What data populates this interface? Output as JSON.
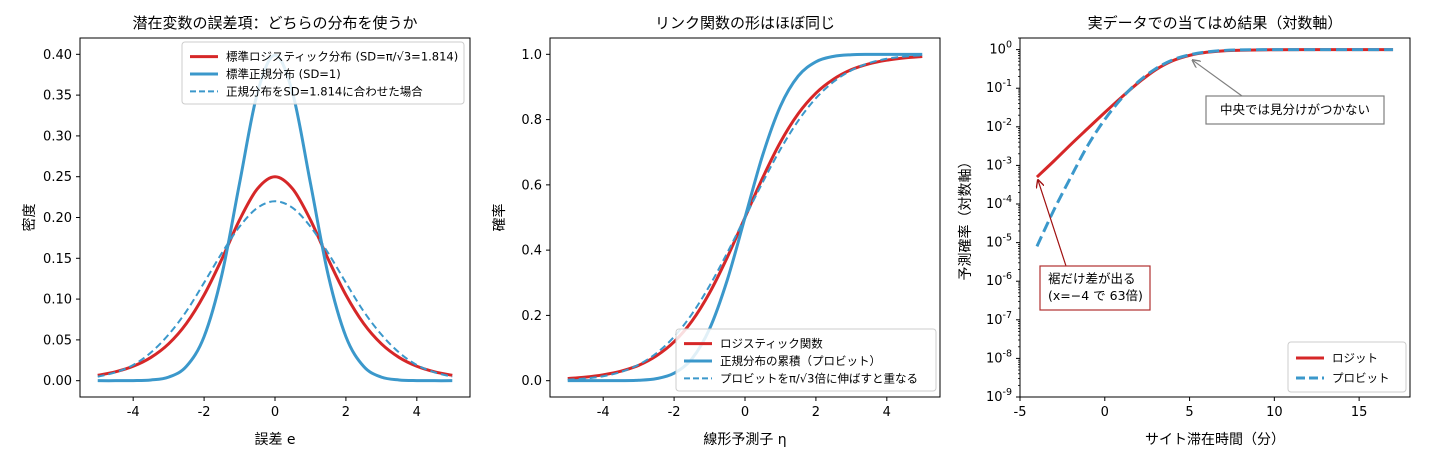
{
  "chart_data": [
    {
      "type": "line",
      "title": "潜在変数の誤差項：どちらの分布を使うか",
      "xlabel": "誤差 e",
      "ylabel": "密度",
      "xlim": [
        -5.5,
        5.5
      ],
      "ylim": [
        -0.02,
        0.42
      ],
      "x_ticks": [
        -4,
        -2,
        0,
        2,
        4
      ],
      "x_tick_labels": [
        "-4",
        "-2",
        "0",
        "2",
        "4"
      ],
      "y_ticks": [
        0,
        0.05,
        0.1,
        0.15,
        0.2,
        0.25,
        0.3,
        0.35,
        0.4
      ],
      "y_tick_labels": [
        "0.00",
        "0.05",
        "0.10",
        "0.15",
        "0.20",
        "0.25",
        "0.30",
        "0.35",
        "0.40"
      ],
      "grid": false,
      "legend_position": "top-right",
      "x": [
        -5,
        -4.5,
        -4,
        -3.5,
        -3,
        -2.5,
        -2,
        -1.5,
        -1,
        -0.5,
        0,
        0.5,
        1,
        1.5,
        2,
        2.5,
        3,
        3.5,
        4,
        4.5,
        5
      ],
      "series": [
        {
          "name": "標準ロジスティック分布 (SD=π/√3=1.814)",
          "color": "#d62728",
          "style": "solid",
          "width": 3,
          "values": [
            0.0066,
            0.0109,
            0.0177,
            0.0285,
            0.0452,
            0.0701,
            0.105,
            0.149,
            0.197,
            0.235,
            0.25,
            0.235,
            0.197,
            0.149,
            0.105,
            0.0701,
            0.0452,
            0.0285,
            0.0177,
            0.0109,
            0.0066
          ]
        },
        {
          "name": "標準正規分布 (SD=1)",
          "color": "#3b98cb",
          "style": "solid",
          "width": 3,
          "values": [
            0.0,
            0.0,
            0.0001,
            0.0009,
            0.0044,
            0.0175,
            0.054,
            0.1295,
            0.242,
            0.352,
            0.399,
            0.352,
            0.242,
            0.1295,
            0.054,
            0.0175,
            0.0044,
            0.0009,
            0.0001,
            0.0,
            0.0
          ]
        },
        {
          "name": "正規分布をSD=1.814に合わせた場合",
          "color": "#3b98cb",
          "style": "dashed",
          "width": 2,
          "values": [
            0.0049,
            0.0102,
            0.0192,
            0.0345,
            0.0566,
            0.085,
            0.1201,
            0.1564,
            0.1888,
            0.2117,
            0.2199,
            0.2117,
            0.1888,
            0.1564,
            0.1201,
            0.085,
            0.0566,
            0.0345,
            0.0192,
            0.0102,
            0.0049
          ]
        }
      ]
    },
    {
      "type": "line",
      "title": "リンク関数の形はほぼ同じ",
      "xlabel": "線形予測子 η",
      "ylabel": "確率",
      "xlim": [
        -5.5,
        5.5
      ],
      "ylim": [
        -0.05,
        1.05
      ],
      "x_ticks": [
        -4,
        -2,
        0,
        2,
        4
      ],
      "x_tick_labels": [
        "-4",
        "-2",
        "0",
        "2",
        "4"
      ],
      "y_ticks": [
        0,
        0.2,
        0.4,
        0.6,
        0.8,
        1.0
      ],
      "y_tick_labels": [
        "0.0",
        "0.2",
        "0.4",
        "0.6",
        "0.8",
        "1.0"
      ],
      "grid": false,
      "legend_position": "lower-right",
      "x": [
        -5,
        -4.5,
        -4,
        -3.5,
        -3,
        -2.5,
        -2,
        -1.5,
        -1,
        -0.5,
        0,
        0.5,
        1,
        1.5,
        2,
        2.5,
        3,
        3.5,
        4,
        4.5,
        5
      ],
      "series": [
        {
          "name": "ロジスティック関数",
          "color": "#d62728",
          "style": "solid",
          "width": 3,
          "values": [
            0.0067,
            0.011,
            0.018,
            0.029,
            0.047,
            0.076,
            0.119,
            0.182,
            0.269,
            0.378,
            0.5,
            0.622,
            0.731,
            0.818,
            0.881,
            0.924,
            0.953,
            0.971,
            0.982,
            0.989,
            0.9933
          ]
        },
        {
          "name": "正規分布の累積（プロビット）",
          "color": "#3b98cb",
          "style": "solid",
          "width": 3,
          "values": [
            0.0,
            0.0,
            0.0,
            0.0002,
            0.0013,
            0.0062,
            0.0228,
            0.0668,
            0.1587,
            0.3085,
            0.5,
            0.6915,
            0.8413,
            0.9332,
            0.9772,
            0.9938,
            0.9987,
            0.9998,
            1.0,
            1.0,
            1.0
          ]
        },
        {
          "name": "プロビットをπ/√3倍に伸ばすと重なる",
          "color": "#3b98cb",
          "style": "dashed",
          "width": 2,
          "values": [
            0.0028,
            0.0066,
            0.0137,
            0.0267,
            0.0491,
            0.084,
            0.1345,
            0.2038,
            0.2909,
            0.3919,
            0.5,
            0.6081,
            0.7091,
            0.7962,
            0.8655,
            0.916,
            0.9509,
            0.9733,
            0.9863,
            0.9934,
            0.9972
          ]
        }
      ]
    },
    {
      "type": "line",
      "title": "実データでの当てはめ結果（対数軸）",
      "xlabel": "サイト滞在時間（分）",
      "ylabel": "予測確率（対数軸）",
      "xlim": [
        -5,
        18
      ],
      "ylim": [
        1e-09,
        2
      ],
      "y_scale": "log",
      "x_ticks": [
        -5,
        0,
        5,
        10,
        15
      ],
      "x_tick_labels": [
        "-5",
        "0",
        "5",
        "10",
        "15"
      ],
      "y_ticks": [
        1e-09,
        1e-08,
        1e-07,
        1e-06,
        1e-05,
        0.0001,
        0.001,
        0.01,
        0.1,
        1
      ],
      "y_tick_exponents": [
        "-9",
        "-8",
        "-7",
        "-6",
        "-5",
        "-4",
        "-3",
        "-2",
        "-1",
        "0"
      ],
      "y_tick_base": "10",
      "grid": false,
      "legend_position": "lower-right",
      "x": [
        -4,
        -3,
        -2,
        -1,
        0,
        1,
        2,
        3,
        4,
        5,
        6,
        7,
        8,
        10,
        12,
        14,
        17
      ],
      "series": [
        {
          "name": "ロジット",
          "color": "#d62728",
          "style": "solid",
          "width": 3,
          "values": [
            0.0005,
            0.0013,
            0.0035,
            0.0091,
            0.0235,
            0.059,
            0.141,
            0.3,
            0.515,
            0.71,
            0.853,
            0.931,
            0.966,
            0.993,
            0.998,
            0.9997,
            0.99995
          ]
        },
        {
          "name": "プロビット",
          "color": "#3b98cb",
          "style": "dashed",
          "width": 3,
          "values": [
            8e-06,
            7e-05,
            0.0005,
            0.0033,
            0.0155,
            0.055,
            0.15,
            0.32,
            0.54,
            0.73,
            0.87,
            0.95,
            0.985,
            0.999,
            0.99995,
            1.0,
            1.0
          ]
        }
      ],
      "annotations": [
        {
          "text": "中央では見分けがつかない",
          "target": [
            5,
            0.6
          ],
          "style": "gray"
        },
        {
          "text": "裾だけ差が出る\n(x=−4 で 63倍)",
          "target": [
            -4,
            0.0005
          ],
          "style": "red"
        }
      ]
    }
  ]
}
